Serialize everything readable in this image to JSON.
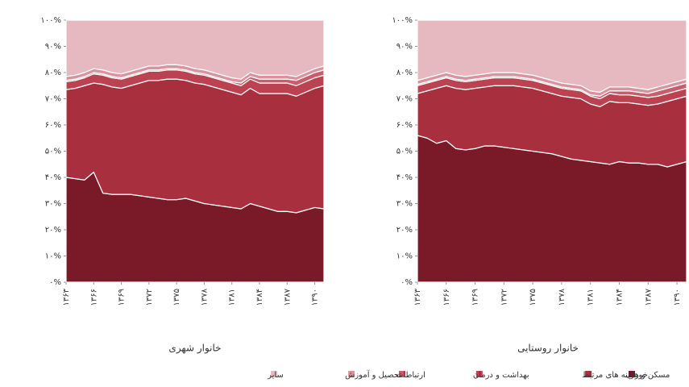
{
  "chart_data": [
    {
      "type": "stacked-area",
      "title": "خانوار شهری",
      "x": [
        1363,
        1364,
        1365,
        1366,
        1367,
        1368,
        1369,
        1370,
        1371,
        1372,
        1373,
        1374,
        1375,
        1376,
        1377,
        1378,
        1379,
        1380,
        1381,
        1382,
        1383,
        1384,
        1385,
        1386,
        1387,
        1388,
        1389,
        1390,
        1391
      ],
      "xlim": [
        1363,
        1391
      ],
      "xticks": [
        {
          "value": 1363,
          "label": "۱۳۶۳"
        },
        {
          "value": 1366,
          "label": "۱۳۶۶"
        },
        {
          "value": 1369,
          "label": "۱۳۶۹"
        },
        {
          "value": 1372,
          "label": "۱۳۷۲"
        },
        {
          "value": 1375,
          "label": "۱۳۷۵"
        },
        {
          "value": 1378,
          "label": "۱۳۷۸"
        },
        {
          "value": 1381,
          "label": "۱۳۸۱"
        },
        {
          "value": 1384,
          "label": "۱۳۸۴"
        },
        {
          "value": 1387,
          "label": "۱۳۸۷"
        },
        {
          "value": 1390,
          "label": "۱۳۹۰"
        }
      ],
      "ylim": [
        0,
        100
      ],
      "yticks": [
        {
          "value": 0,
          "label": "۰%"
        },
        {
          "value": 10,
          "label": "۱۰%"
        },
        {
          "value": 20,
          "label": "۲۰%"
        },
        {
          "value": 30,
          "label": "۳۰%"
        },
        {
          "value": 40,
          "label": "۴۰%"
        },
        {
          "value": 50,
          "label": "۵۰%"
        },
        {
          "value": 60,
          "label": "۶۰%"
        },
        {
          "value": 70,
          "label": "۷۰%"
        },
        {
          "value": 80,
          "label": "۸۰%"
        },
        {
          "value": 90,
          "label": "۹۰%"
        },
        {
          "value": 100,
          "label": "۱۰۰%"
        }
      ],
      "series": [
        {
          "values": [
            40,
            39.5,
            39,
            42,
            34,
            33.5,
            33.5,
            33.5,
            33,
            32.5,
            32,
            31.5,
            31.5,
            32,
            31,
            30,
            29.5,
            29,
            28.5,
            28,
            30,
            29,
            28,
            27,
            27,
            26.5,
            27.5,
            28.5,
            28
          ]
        },
        {
          "values": [
            33.5,
            34.5,
            36,
            34,
            41.5,
            41,
            40.5,
            41.5,
            43,
            44.5,
            45,
            46,
            46,
            45,
            45,
            45.5,
            45,
            44.5,
            44,
            43.5,
            44,
            43,
            44,
            45,
            45,
            44.5,
            45,
            45.5,
            47
          ]
        },
        {
          "values": [
            3,
            3,
            3,
            3.5,
            3.5,
            3.5,
            3.5,
            3.5,
            3.5,
            3.5,
            3.5,
            3.5,
            3.5,
            3.5,
            3.5,
            3.5,
            3.5,
            3.5,
            3.5,
            3.5,
            3.5,
            4,
            4,
            4,
            4,
            4,
            4,
            4,
            4
          ]
        },
        {
          "values": [
            0.5,
            0.5,
            0.5,
            0.5,
            0.5,
            0.5,
            0.5,
            0.5,
            0.5,
            0.5,
            0.5,
            0.5,
            0.5,
            0.5,
            0.5,
            0.5,
            0.5,
            0.5,
            0.5,
            1,
            1,
            1.5,
            1.5,
            1.5,
            1.5,
            2,
            2,
            2,
            2
          ]
        },
        {
          "values": [
            1.5,
            1.5,
            1.5,
            1.5,
            1.5,
            1.5,
            1.5,
            1.5,
            1.5,
            1.5,
            1.5,
            1.5,
            1.5,
            1.5,
            1.5,
            1.5,
            1.5,
            1.5,
            1.5,
            1.5,
            1.5,
            1.5,
            1.5,
            1.5,
            1.5,
            1.5,
            1.5,
            1.5,
            1.5
          ]
        },
        {
          "values": [
            21.5,
            21,
            20,
            18.5,
            19,
            20,
            20.5,
            19.5,
            18.5,
            17.5,
            17.5,
            17,
            17,
            17.5,
            18.5,
            19,
            20,
            21,
            22,
            22.5,
            20,
            21,
            21,
            21,
            21,
            21.5,
            20,
            18.5,
            17.5
          ]
        }
      ]
    },
    {
      "type": "stacked-area",
      "title": "خانوار روستایی",
      "x": [
        1363,
        1364,
        1365,
        1366,
        1367,
        1368,
        1369,
        1370,
        1371,
        1372,
        1373,
        1374,
        1375,
        1376,
        1377,
        1378,
        1379,
        1380,
        1381,
        1382,
        1383,
        1384,
        1385,
        1386,
        1387,
        1388,
        1389,
        1390,
        1391
      ],
      "xlim": [
        1363,
        1391
      ],
      "xticks": [
        {
          "value": 1363,
          "label": "۱۳۶۳"
        },
        {
          "value": 1366,
          "label": "۱۳۶۶"
        },
        {
          "value": 1369,
          "label": "۱۳۶۹"
        },
        {
          "value": 1372,
          "label": "۱۳۷۲"
        },
        {
          "value": 1375,
          "label": "۱۳۷۵"
        },
        {
          "value": 1378,
          "label": "۱۳۷۸"
        },
        {
          "value": 1381,
          "label": "۱۳۸۱"
        },
        {
          "value": 1384,
          "label": "۱۳۸۴"
        },
        {
          "value": 1387,
          "label": "۱۳۸۷"
        },
        {
          "value": 1390,
          "label": "۱۳۹۰"
        }
      ],
      "ylim": [
        0,
        100
      ],
      "yticks": [
        {
          "value": 0,
          "label": "۰%"
        },
        {
          "value": 10,
          "label": "۱۰%"
        },
        {
          "value": 20,
          "label": "۲۰%"
        },
        {
          "value": 30,
          "label": "۳۰%"
        },
        {
          "value": 40,
          "label": "۴۰%"
        },
        {
          "value": 50,
          "label": "۵۰%"
        },
        {
          "value": 60,
          "label": "۶۰%"
        },
        {
          "value": 70,
          "label": "۷۰%"
        },
        {
          "value": 80,
          "label": "۸۰%"
        },
        {
          "value": 90,
          "label": "۹۰%"
        },
        {
          "value": 100,
          "label": "۱۰۰%"
        }
      ],
      "series": [
        {
          "values": [
            56,
            55,
            53,
            54,
            51,
            50.5,
            51,
            52,
            52,
            51.5,
            51,
            50.5,
            50,
            49.5,
            49,
            48,
            47,
            46.5,
            46,
            45.5,
            45,
            46,
            45.5,
            45.5,
            45,
            45,
            44,
            45,
            46
          ]
        },
        {
          "values": [
            16,
            18,
            21,
            21,
            23,
            23,
            23,
            22.5,
            23,
            23.5,
            24,
            24,
            24,
            23.5,
            23,
            23,
            23.5,
            23.5,
            22,
            21.5,
            24,
            22.5,
            23,
            22.5,
            22.5,
            23,
            25,
            25,
            25
          ]
        },
        {
          "values": [
            3,
            3,
            3,
            3,
            3,
            3,
            3,
            3,
            3,
            3,
            3,
            3,
            3,
            3,
            3,
            3,
            3,
            3,
            3,
            3,
            3,
            3,
            3,
            3,
            3,
            3,
            3,
            3,
            3
          ]
        },
        {
          "values": [
            0.5,
            0.5,
            0.5,
            0.5,
            0.5,
            0.5,
            0.5,
            0.5,
            0.5,
            0.5,
            0.5,
            0.5,
            0.5,
            0.5,
            0.5,
            0.5,
            0.5,
            0.5,
            0.5,
            1,
            1,
            1.5,
            1.5,
            1.5,
            1.5,
            2,
            2,
            2,
            2
          ]
        },
        {
          "values": [
            1.5,
            1.5,
            1.5,
            1.5,
            1.5,
            1.5,
            1.5,
            1.5,
            1.5,
            1.5,
            1.5,
            1.5,
            1.5,
            1.5,
            1.5,
            1.5,
            1.5,
            1.5,
            1.5,
            1.5,
            1.5,
            1.5,
            1.5,
            1.5,
            1.5,
            1.5,
            1.5,
            1.5,
            1.5
          ]
        },
        {
          "values": [
            23,
            22,
            21,
            20,
            21,
            21.5,
            21,
            20.5,
            20,
            20,
            20,
            20.5,
            21,
            22,
            23,
            24,
            24.5,
            25,
            27,
            27.5,
            25.5,
            25.5,
            25.5,
            26,
            26.5,
            25.5,
            24.5,
            23.5,
            22.5
          ]
        }
      ]
    }
  ],
  "legend": [
    {
      "name": "خوراک",
      "color": "#7a1a28"
    },
    {
      "name": "مسکن و هزینه های مرتبط",
      "color": "#a82f3d"
    },
    {
      "name": "بهداشت و درمان",
      "color": "#bb4251"
    },
    {
      "name": "ارتباطات",
      "color": "#c85d6b"
    },
    {
      "name": "تحصیل و آموزش",
      "color": "#d8949e"
    },
    {
      "name": "سایر",
      "color": "#e6b9c0"
    }
  ]
}
